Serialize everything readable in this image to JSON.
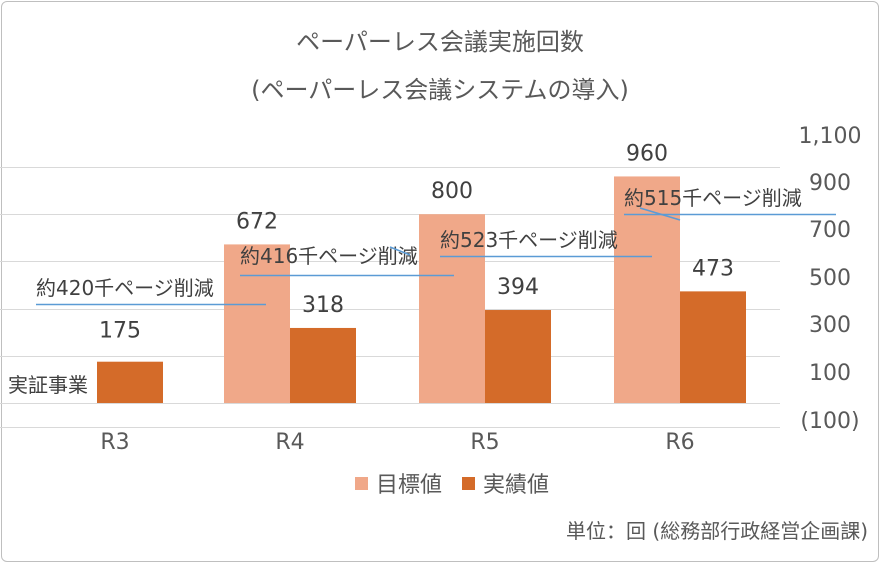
{
  "chart_data": {
    "type": "bar",
    "title": "ペーパーレス会議実施回数",
    "subtitle": "(ペーパーレス会議システムの導入)",
    "categories": [
      "R3",
      "R4",
      "R5",
      "R6"
    ],
    "series": [
      {
        "name": "目標値",
        "color": "#F0A889",
        "values": [
          null,
          672,
          800,
          960
        ]
      },
      {
        "name": "実績値",
        "color": "#D46B29",
        "values": [
          175,
          318,
          394,
          473
        ]
      }
    ],
    "ylim": [
      -100,
      1100
    ],
    "ytick_values": [
      1100,
      900,
      700,
      500,
      300,
      100,
      -100
    ],
    "ytick_labels": [
      "1,100",
      "900",
      "700",
      "500",
      "300",
      "100",
      "(100)"
    ],
    "gridline_values": [
      1000,
      800,
      600,
      400,
      200,
      0,
      -100
    ],
    "annotations": [
      {
        "text": "実証事業",
        "category": "R3"
      },
      {
        "text": "約420千ページ削減",
        "category": "R3",
        "line_value": 420
      },
      {
        "text": "約416千ページ削減",
        "category": "R4",
        "line_value": 542
      },
      {
        "text": "約523千ページ削減",
        "category": "R5",
        "line_value": 623
      },
      {
        "text": "約515千ページ削減",
        "category": "R6",
        "line_value": 800
      }
    ],
    "legend": [
      "目標値",
      "実績値"
    ],
    "unit_note": "単位：回 (総務部行政経営企画課)"
  }
}
